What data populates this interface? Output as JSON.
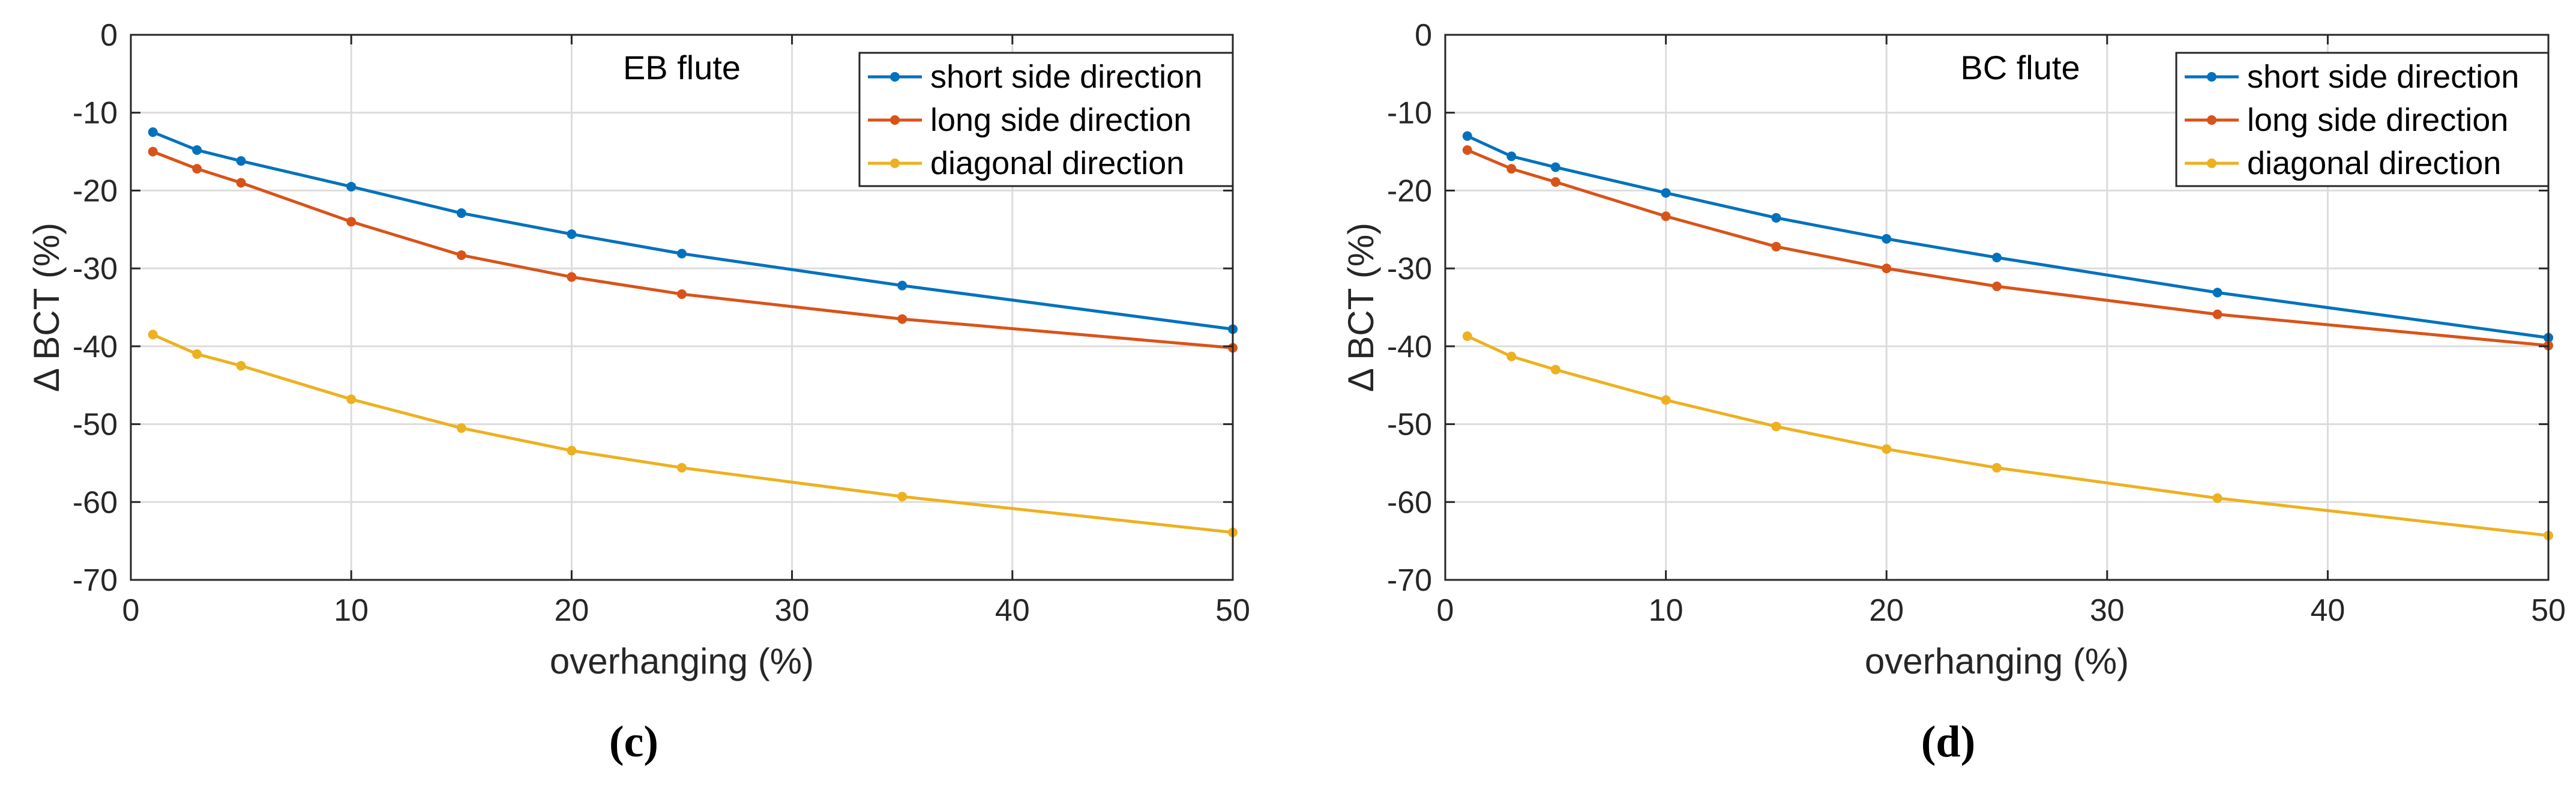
{
  "chart_data": [
    {
      "type": "line",
      "panel": "(c)",
      "title": "EB flute",
      "xlabel": "overhanging (%)",
      "ylabel": "Δ BCT (%)",
      "xlim": [
        0,
        50
      ],
      "ylim": [
        -70,
        0
      ],
      "xticks": [
        0,
        10,
        20,
        30,
        40,
        50
      ],
      "yticks": [
        0,
        -10,
        -20,
        -30,
        -40,
        -50,
        -60,
        -70
      ],
      "grid": true,
      "legend_position": "top-right",
      "x": [
        1,
        3,
        5,
        10,
        15,
        20,
        25,
        35,
        50
      ],
      "series": [
        {
          "name": "short side direction",
          "color": "#0072BD",
          "values": [
            -12.5,
            -14.8,
            -16.2,
            -19.5,
            -22.9,
            -25.6,
            -28.1,
            -32.2,
            -37.8
          ]
        },
        {
          "name": "long side direction",
          "color": "#D95319",
          "values": [
            -15.0,
            -17.2,
            -19.0,
            -24.0,
            -28.3,
            -31.1,
            -33.3,
            -36.5,
            -40.2
          ]
        },
        {
          "name": "diagonal direction",
          "color": "#EDB120",
          "values": [
            -38.5,
            -41.0,
            -42.5,
            -46.8,
            -50.5,
            -53.4,
            -55.6,
            -59.3,
            -63.9
          ]
        }
      ]
    },
    {
      "type": "line",
      "panel": "(d)",
      "title": "BC flute",
      "xlabel": "overhanging (%)",
      "ylabel": "Δ BCT (%)",
      "xlim": [
        0,
        50
      ],
      "ylim": [
        -70,
        0
      ],
      "xticks": [
        0,
        10,
        20,
        30,
        40,
        50
      ],
      "yticks": [
        0,
        -10,
        -20,
        -30,
        -40,
        -50,
        -60,
        -70
      ],
      "grid": true,
      "legend_position": "top-right",
      "x": [
        1,
        3,
        5,
        10,
        15,
        20,
        25,
        35,
        50
      ],
      "series": [
        {
          "name": "short side direction",
          "color": "#0072BD",
          "values": [
            -13.0,
            -15.6,
            -17.0,
            -20.3,
            -23.5,
            -26.2,
            -28.6,
            -33.1,
            -38.9
          ]
        },
        {
          "name": "long side direction",
          "color": "#D95319",
          "values": [
            -14.8,
            -17.2,
            -18.9,
            -23.3,
            -27.2,
            -30.0,
            -32.3,
            -35.9,
            -39.9
          ]
        },
        {
          "name": "diagonal direction",
          "color": "#EDB120",
          "values": [
            -38.7,
            -41.3,
            -43.0,
            -46.9,
            -50.3,
            -53.2,
            -55.6,
            -59.5,
            -64.3
          ]
        }
      ]
    }
  ]
}
